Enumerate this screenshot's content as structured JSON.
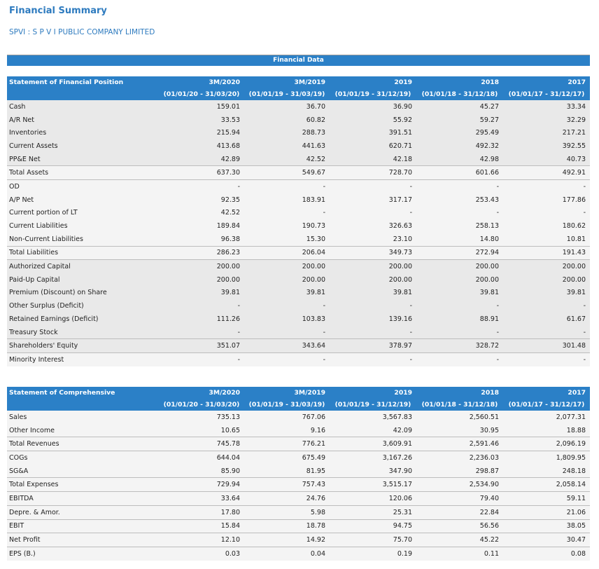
{
  "page_title": "Financial Summary",
  "company": "SPVI : S P V I PUBLIC COMPANY LIMITED",
  "financial_data_header": "Financial Data",
  "periods": [
    {
      "label": "3M/2020",
      "range": "(01/01/20 - 31/03/20)"
    },
    {
      "label": "3M/2019",
      "range": "(01/01/19 - 31/03/19)"
    },
    {
      "label": "2019",
      "range": "(01/01/19 - 31/12/19)"
    },
    {
      "label": "2018",
      "range": "(01/01/18 - 31/12/18)"
    },
    {
      "label": "2017",
      "range": "(01/01/17 - 31/12/17)"
    }
  ],
  "position": {
    "title": "Statement of Financial Position",
    "rows": [
      {
        "label": "Cash",
        "values": [
          "159.01",
          "36.70",
          "36.90",
          "45.27",
          "33.34"
        ]
      },
      {
        "label": "A/R Net",
        "values": [
          "33.53",
          "60.82",
          "55.92",
          "59.27",
          "32.29"
        ]
      },
      {
        "label": "Inventories",
        "values": [
          "215.94",
          "288.73",
          "391.51",
          "295.49",
          "217.21"
        ]
      },
      {
        "label": "Current Assets",
        "values": [
          "413.68",
          "441.63",
          "620.71",
          "492.32",
          "392.55"
        ]
      },
      {
        "label": "PP&E Net",
        "values": [
          "42.89",
          "42.52",
          "42.18",
          "42.98",
          "40.73"
        ]
      },
      {
        "label": "Total Assets",
        "values": [
          "637.30",
          "549.67",
          "728.70",
          "601.66",
          "492.91"
        ]
      },
      {
        "label": "OD",
        "values": [
          "-",
          "-",
          "-",
          "-",
          "-"
        ]
      },
      {
        "label": "A/P Net",
        "values": [
          "92.35",
          "183.91",
          "317.17",
          "253.43",
          "177.86"
        ]
      },
      {
        "label": "Current portion of LT",
        "values": [
          "42.52",
          "-",
          "-",
          "-",
          "-"
        ]
      },
      {
        "label": "Current Liabilities",
        "values": [
          "189.84",
          "190.73",
          "326.63",
          "258.13",
          "180.62"
        ]
      },
      {
        "label": "Non-Current Liabilities",
        "values": [
          "96.38",
          "15.30",
          "23.10",
          "14.80",
          "10.81"
        ]
      },
      {
        "label": "Total Liabilities",
        "values": [
          "286.23",
          "206.04",
          "349.73",
          "272.94",
          "191.43"
        ]
      },
      {
        "label": "Authorized Capital",
        "values": [
          "200.00",
          "200.00",
          "200.00",
          "200.00",
          "200.00"
        ]
      },
      {
        "label": "Paid-Up Capital",
        "values": [
          "200.00",
          "200.00",
          "200.00",
          "200.00",
          "200.00"
        ]
      },
      {
        "label": "Premium (Discount) on Share",
        "values": [
          "39.81",
          "39.81",
          "39.81",
          "39.81",
          "39.81"
        ]
      },
      {
        "label": "Other Surplus (Deficit)",
        "values": [
          "-",
          "-",
          "-",
          "-",
          "-"
        ]
      },
      {
        "label": "Retained Earnings (Deficit)",
        "values": [
          "111.26",
          "103.83",
          "139.16",
          "88.91",
          "61.67"
        ]
      },
      {
        "label": "Treasury Stock",
        "values": [
          "-",
          "-",
          "-",
          "-",
          "-"
        ]
      },
      {
        "label": "Shareholders' Equity",
        "values": [
          "351.07",
          "343.64",
          "378.97",
          "328.72",
          "301.48"
        ]
      },
      {
        "label": "Minority Interest",
        "values": [
          "-",
          "-",
          "-",
          "-",
          "-"
        ]
      }
    ]
  },
  "comprehensive": {
    "title": "Statement of Comprehensive",
    "rows": [
      {
        "label": "Sales",
        "values": [
          "735.13",
          "767.06",
          "3,567.83",
          "2,560.51",
          "2,077.31"
        ]
      },
      {
        "label": "Other Income",
        "values": [
          "10.65",
          "9.16",
          "42.09",
          "30.95",
          "18.88"
        ]
      },
      {
        "label": "Total Revenues",
        "values": [
          "745.78",
          "776.21",
          "3,609.91",
          "2,591.46",
          "2,096.19"
        ]
      },
      {
        "label": "COGs",
        "values": [
          "644.04",
          "675.49",
          "3,167.26",
          "2,236.03",
          "1,809.95"
        ]
      },
      {
        "label": "SG&A",
        "values": [
          "85.90",
          "81.95",
          "347.90",
          "298.87",
          "248.18"
        ]
      },
      {
        "label": "Total Expenses",
        "values": [
          "729.94",
          "757.43",
          "3,515.17",
          "2,534.90",
          "2,058.14"
        ]
      },
      {
        "label": "EBITDA",
        "values": [
          "33.64",
          "24.76",
          "120.06",
          "79.40",
          "59.11"
        ]
      },
      {
        "label": "Depre. & Amor.",
        "values": [
          "17.80",
          "5.98",
          "25.31",
          "22.84",
          "21.06"
        ]
      },
      {
        "label": "EBIT",
        "values": [
          "15.84",
          "18.78",
          "94.75",
          "56.56",
          "38.05"
        ]
      },
      {
        "label": "Net Profit",
        "values": [
          "12.10",
          "14.92",
          "75.70",
          "45.22",
          "30.47"
        ]
      },
      {
        "label": "EPS (B.)",
        "values": [
          "0.03",
          "0.04",
          "0.19",
          "0.11",
          "0.08"
        ]
      }
    ]
  },
  "colors": {
    "accent": "#2b80c7",
    "title": "#2e7bbf",
    "row_gray": "#e9e9e9",
    "row_light": "#f4f4f4"
  }
}
